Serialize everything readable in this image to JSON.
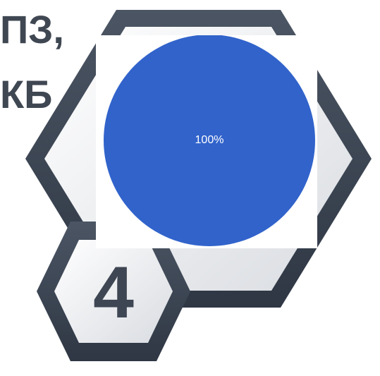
{
  "background_text": {
    "fragment_1": "ПЗ,",
    "fragment_2": "КБ"
  },
  "badge": {
    "number": "4"
  },
  "colors": {
    "pie_fill": "#3163cb",
    "hex_frame": "#3d4654",
    "hex_inner": "#f1f2f4",
    "text_dark": "#3f4752"
  },
  "chart_data": {
    "type": "pie",
    "title": "",
    "categories": [
      ""
    ],
    "values": [
      100
    ],
    "labels": [
      "100%"
    ],
    "legend": "none"
  }
}
